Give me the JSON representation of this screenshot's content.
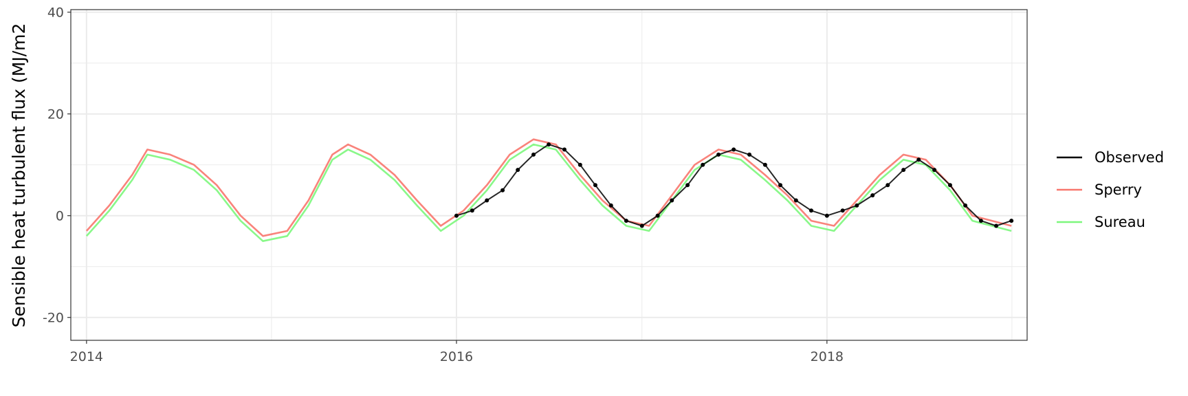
{
  "chart_data": {
    "type": "line",
    "title": "",
    "xlabel": "",
    "ylabel": "Sensible heat turbulent flux (MJ/m2",
    "xlim": [
      "2013-12-01",
      "2019-01-31"
    ],
    "ylim": [
      -24.5,
      40.5
    ],
    "x_ticks": [
      {
        "date": "2014-01-01",
        "label": "2014"
      },
      {
        "date": "2016-01-01",
        "label": "2016"
      },
      {
        "date": "2018-01-01",
        "label": "2018"
      }
    ],
    "x_minor_ticks": [
      "2015-01-01",
      "2017-01-01",
      "2019-01-01"
    ],
    "y_ticks": [
      -20,
      0,
      20,
      40
    ],
    "y_minor_ticks": [
      -10,
      10,
      30
    ],
    "grid": true,
    "legend_position": "right",
    "series": [
      {
        "name": "Sperry",
        "color": "#f8766d",
        "kind": "line",
        "x": [
          "2014-01-01",
          "2014-02-15",
          "2014-04-01",
          "2014-05-01",
          "2014-06-15",
          "2014-08-01",
          "2014-09-15",
          "2014-11-01",
          "2014-12-15",
          "2015-02-01",
          "2015-03-15",
          "2015-05-01",
          "2015-06-01",
          "2015-07-15",
          "2015-09-01",
          "2015-10-15",
          "2015-12-01",
          "2016-01-15",
          "2016-03-01",
          "2016-04-15",
          "2016-06-01",
          "2016-07-15",
          "2016-09-01",
          "2016-10-15",
          "2016-12-01",
          "2017-01-15",
          "2017-03-01",
          "2017-04-15",
          "2017-06-01",
          "2017-07-15",
          "2017-09-01",
          "2017-10-15",
          "2017-12-01",
          "2018-01-15",
          "2018-03-01",
          "2018-04-15",
          "2018-06-01",
          "2018-07-15",
          "2018-09-01",
          "2018-10-15",
          "2018-12-31"
        ],
        "y": [
          -3,
          2,
          8,
          13,
          12,
          10,
          6,
          0,
          -4,
          -3,
          3,
          12,
          14,
          12,
          8,
          3,
          -2,
          1,
          6,
          12,
          15,
          14,
          8,
          3,
          -1,
          -2,
          4,
          10,
          13,
          12,
          8,
          4,
          -1,
          -2,
          3,
          8,
          12,
          11,
          6,
          0,
          -2
        ]
      },
      {
        "name": "Sureau",
        "color": "#7cf77c",
        "kind": "line",
        "x": [
          "2014-01-01",
          "2014-02-15",
          "2014-04-01",
          "2014-05-01",
          "2014-06-15",
          "2014-08-01",
          "2014-09-15",
          "2014-11-01",
          "2014-12-15",
          "2015-02-01",
          "2015-03-15",
          "2015-05-01",
          "2015-06-01",
          "2015-07-15",
          "2015-09-01",
          "2015-10-15",
          "2015-12-01",
          "2016-01-15",
          "2016-03-01",
          "2016-04-15",
          "2016-06-01",
          "2016-07-15",
          "2016-09-01",
          "2016-10-15",
          "2016-12-01",
          "2017-01-15",
          "2017-03-01",
          "2017-04-15",
          "2017-06-01",
          "2017-07-15",
          "2017-09-01",
          "2017-10-15",
          "2017-12-01",
          "2018-01-15",
          "2018-03-01",
          "2018-04-15",
          "2018-06-01",
          "2018-07-15",
          "2018-09-01",
          "2018-10-15",
          "2018-12-31"
        ],
        "y": [
          -4,
          1,
          7,
          12,
          11,
          9,
          5,
          -1,
          -5,
          -4,
          2,
          11,
          13,
          11,
          7,
          2,
          -3,
          0,
          5,
          11,
          14,
          13,
          7,
          2,
          -2,
          -3,
          3,
          9,
          12,
          11,
          7,
          3,
          -2,
          -3,
          2,
          7,
          11,
          10,
          5,
          -1,
          -3
        ]
      },
      {
        "name": "Observed",
        "color": "#000000",
        "kind": "line+points",
        "x": [
          "2016-01-01",
          "2016-02-01",
          "2016-03-01",
          "2016-04-01",
          "2016-05-01",
          "2016-06-01",
          "2016-07-01",
          "2016-08-01",
          "2016-09-01",
          "2016-10-01",
          "2016-11-01",
          "2016-12-01",
          "2017-01-01",
          "2017-02-01",
          "2017-03-01",
          "2017-04-01",
          "2017-05-01",
          "2017-06-01",
          "2017-07-01",
          "2017-08-01",
          "2017-09-01",
          "2017-10-01",
          "2017-11-01",
          "2017-12-01",
          "2018-01-01",
          "2018-02-01",
          "2018-03-01",
          "2018-04-01",
          "2018-05-01",
          "2018-06-01",
          "2018-07-01",
          "2018-08-01",
          "2018-09-01",
          "2018-10-01",
          "2018-11-01",
          "2018-12-01",
          "2018-12-31"
        ],
        "y": [
          0,
          1,
          3,
          5,
          9,
          12,
          14,
          13,
          10,
          6,
          2,
          -1,
          -2,
          0,
          3,
          6,
          10,
          12,
          13,
          12,
          10,
          6,
          3,
          1,
          0,
          1,
          2,
          4,
          6,
          9,
          11,
          9,
          6,
          2,
          -1,
          -2,
          -1
        ]
      }
    ]
  }
}
